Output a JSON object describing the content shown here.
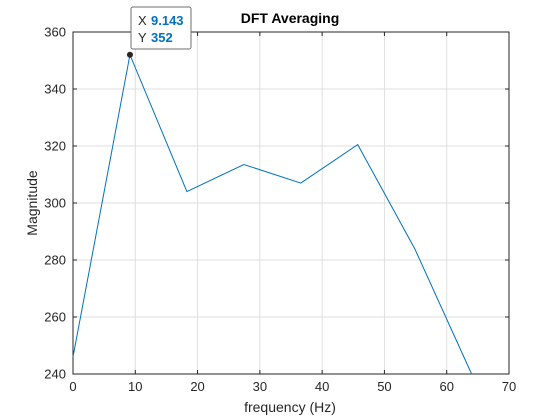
{
  "chart_data": {
    "type": "line",
    "title": "DFT Averaging",
    "xlabel": "frequency (Hz)",
    "ylabel": "Magnitude",
    "xlim": [
      0,
      70
    ],
    "ylim": [
      240,
      360
    ],
    "xticks": [
      "0",
      "10",
      "20",
      "30",
      "40",
      "50",
      "60",
      "70"
    ],
    "yticks": [
      "240",
      "260",
      "280",
      "300",
      "320",
      "340",
      "360"
    ],
    "grid": true,
    "line_color": "#0072bd",
    "series": [
      {
        "x": [
          0,
          9.143,
          18.286,
          27.429,
          36.571,
          45.714,
          54.857,
          64
        ],
        "y": [
          246,
          352,
          304,
          313.5,
          307,
          320.5,
          284,
          240
        ]
      }
    ],
    "datatip": {
      "x_key": "X",
      "x_value": "9.143",
      "y_key": "Y",
      "y_value": "352",
      "x": 9.143,
      "y": 352
    }
  }
}
